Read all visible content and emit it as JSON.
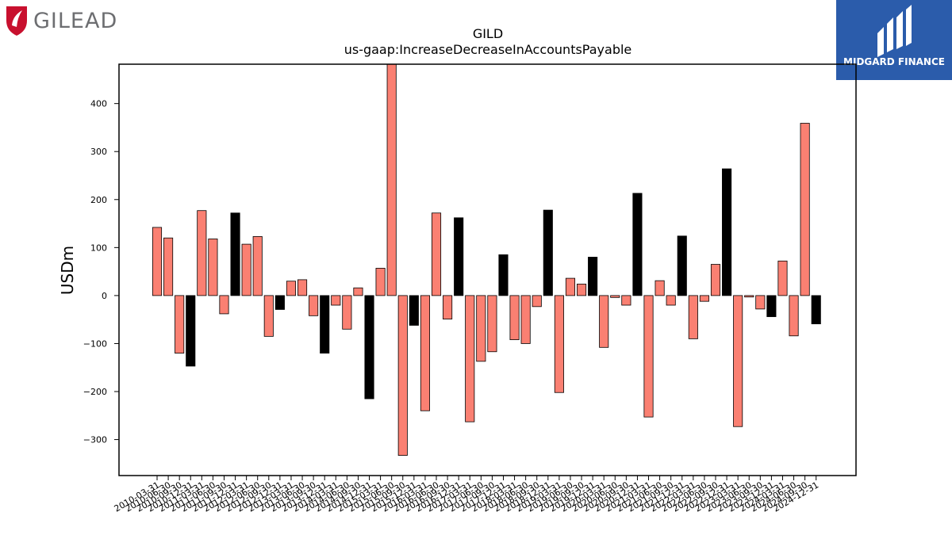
{
  "branding": {
    "left_logo_text": "GILEAD",
    "right_logo_text": "MIDGARD FINANCE"
  },
  "chart_data": {
    "type": "bar",
    "title": "GILD",
    "subtitle": "us-gaap:IncreaseDecreaseInAccountsPayable",
    "xlabel": "",
    "ylabel": "USDm",
    "ylim": [
      -375,
      482
    ],
    "yticks": [
      -300,
      -200,
      -100,
      0,
      100,
      200,
      300,
      400
    ],
    "grid": false,
    "colors": {
      "quarter": "#fa8072",
      "annual": "#000000"
    },
    "categories": [
      "2010-03-31",
      "2010-06-30",
      "2010-09-30",
      "2010-12-31",
      "2011-03-31",
      "2011-06-30",
      "2011-09-30",
      "2011-12-31",
      "2012-03-31",
      "2012-06-30",
      "2012-09-30",
      "2012-12-31",
      "2013-03-31",
      "2013-06-30",
      "2013-09-30",
      "2013-12-31",
      "2014-03-31",
      "2014-06-30",
      "2014-09-30",
      "2014-12-31",
      "2015-03-31",
      "2015-06-30",
      "2015-09-30",
      "2015-12-31",
      "2016-03-31",
      "2016-06-30",
      "2016-09-30",
      "2016-12-31",
      "2017-03-31",
      "2017-06-30",
      "2017-09-30",
      "2017-12-31",
      "2018-03-31",
      "2018-06-30",
      "2018-09-30",
      "2018-12-31",
      "2019-03-31",
      "2019-06-30",
      "2019-09-30",
      "2019-12-31",
      "2020-03-31",
      "2020-06-30",
      "2020-09-30",
      "2020-12-31",
      "2021-03-31",
      "2021-06-30",
      "2021-09-30",
      "2021-12-31",
      "2022-03-31",
      "2022-06-30",
      "2022-09-30",
      "2022-12-31",
      "2023-03-31",
      "2023-06-30",
      "2023-09-30",
      "2023-12-31",
      "2024-03-31",
      "2024-06-30",
      "2024-09-30",
      "2024-12-31"
    ],
    "values": [
      142,
      120,
      -120,
      -147,
      177,
      118,
      -38,
      172,
      107,
      123,
      -85,
      -29,
      30,
      33,
      -42,
      -120,
      -20,
      -70,
      16,
      -215,
      57,
      482,
      -333,
      -62,
      -240,
      172,
      -49,
      162,
      -263,
      -137,
      -117,
      85,
      -92,
      -100,
      -23,
      178,
      -202,
      36,
      24,
      80,
      -108,
      -4,
      -20,
      213,
      -253,
      31,
      -20,
      124,
      -90,
      -12,
      65,
      264,
      -273,
      -3,
      -28,
      -44,
      72,
      -84,
      359,
      -59
    ],
    "annual": [
      false,
      false,
      false,
      true,
      false,
      false,
      false,
      true,
      false,
      false,
      false,
      true,
      false,
      false,
      false,
      true,
      false,
      false,
      false,
      true,
      false,
      false,
      false,
      true,
      false,
      false,
      false,
      true,
      false,
      false,
      false,
      true,
      false,
      false,
      false,
      true,
      false,
      false,
      false,
      true,
      false,
      false,
      false,
      true,
      false,
      false,
      false,
      true,
      false,
      false,
      false,
      true,
      false,
      false,
      false,
      true,
      false,
      false,
      false,
      true
    ]
  }
}
